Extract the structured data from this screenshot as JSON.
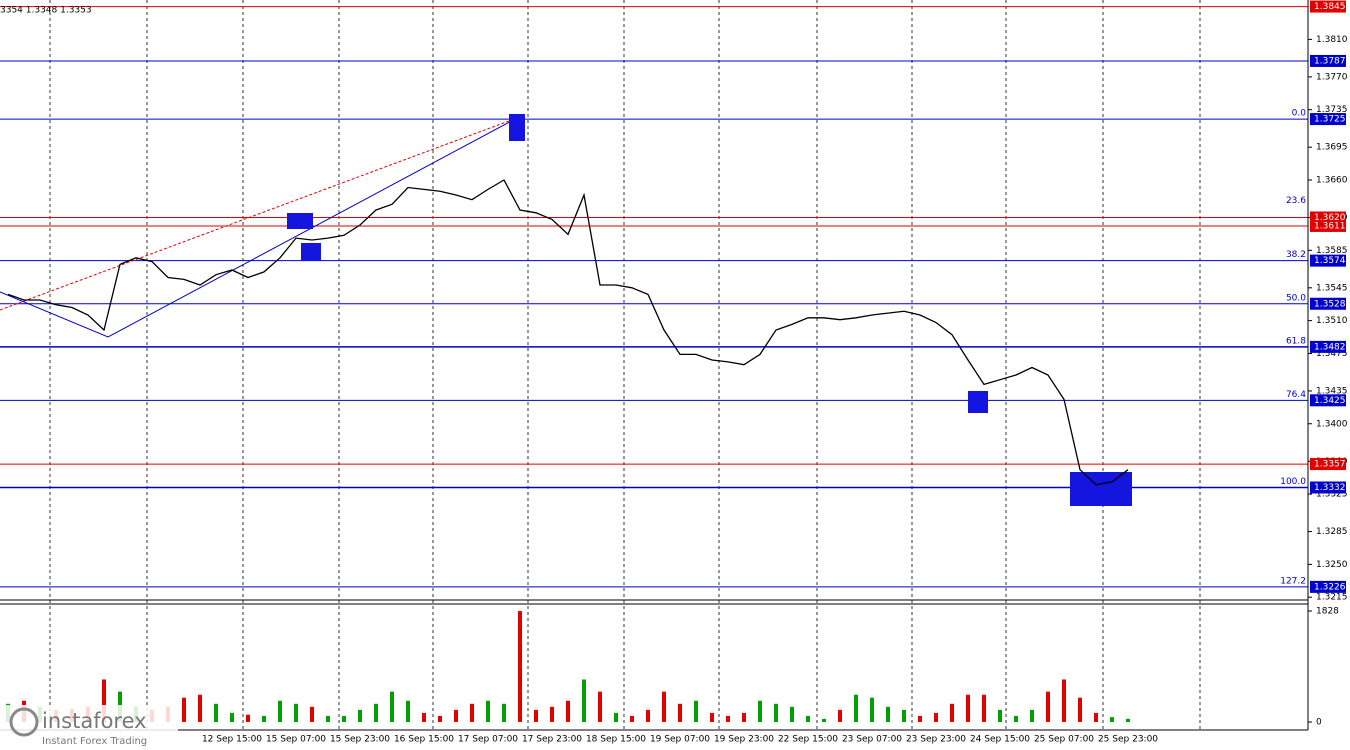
{
  "header": "3354 1.3348 1.3353",
  "logo": {
    "brand": "instaforex",
    "tagline": "Instant Forex Trading"
  },
  "chart_data": [
    {
      "type": "line",
      "color": "#000000",
      "categories": [
        null,
        null,
        null,
        null,
        null,
        null,
        null,
        null,
        null,
        null,
        null,
        null,
        null,
        null,
        "12 Sep 15:00",
        null,
        null,
        null,
        "15 Sep 07:00",
        null,
        null,
        null,
        "15 Sep 23:00",
        null,
        null,
        null,
        "16 Sep 15:00",
        null,
        null,
        null,
        "17 Sep 07:00",
        null,
        null,
        null,
        "17 Sep 23:00",
        null,
        null,
        null,
        "18 Sep 15:00",
        null,
        null,
        null,
        "19 Sep 07:00",
        null,
        null,
        null,
        "19 Sep 23:00",
        null,
        null,
        null,
        "22 Sep 15:00",
        null,
        null,
        null,
        "23 Sep 07:00",
        null,
        null,
        null,
        "23 Sep 23:00",
        null,
        null,
        null,
        "24 Sep 15:00",
        null,
        null,
        null,
        "25 Sep 07:00",
        null,
        null,
        null,
        "25 Sep 23:00"
      ],
      "values": [
        1.3538,
        1.3532,
        1.3532,
        1.3527,
        1.3524,
        1.3516,
        1.35,
        1.357,
        1.3577,
        1.3573,
        1.3556,
        1.3554,
        1.3548,
        1.3559,
        1.3564,
        1.3556,
        1.3562,
        1.3577,
        1.3598,
        1.3596,
        1.3598,
        1.3601,
        1.3612,
        1.3628,
        1.3634,
        1.3652,
        1.365,
        1.3648,
        1.3644,
        1.3639,
        1.365,
        1.366,
        1.3628,
        1.3625,
        1.3618,
        1.3602,
        1.3644,
        1.3548,
        1.3548,
        1.3545,
        1.3538,
        1.35,
        1.3474,
        1.3474,
        1.3468,
        1.3466,
        1.3463,
        1.3474,
        1.35,
        1.3506,
        1.3513,
        1.3513,
        1.3511,
        1.3513,
        1.3516,
        1.3518,
        1.352,
        1.3516,
        1.3508,
        1.3495,
        1.3468,
        1.3442,
        1.3447,
        1.3452,
        1.346,
        1.3452,
        1.3426,
        1.3351,
        1.3335,
        1.3338,
        1.3351
      ],
      "ylim": [
        1.3212,
        1.3852
      ],
      "yticks": [
        {
          "value": 1.381,
          "label": "1.3810"
        },
        {
          "value": 1.377,
          "label": "1.3770"
        },
        {
          "value": 1.3735,
          "label": "1.3735"
        },
        {
          "value": 1.3695,
          "label": "1.3695"
        },
        {
          "value": 1.366,
          "label": "1.3660"
        },
        {
          "value": 1.362,
          "label": "1.3620"
        },
        {
          "value": 1.3585,
          "label": "1.3585"
        },
        {
          "value": 1.3545,
          "label": "1.3545"
        },
        {
          "value": 1.351,
          "label": "1.3510"
        },
        {
          "value": 1.3475,
          "label": "1.3475"
        },
        {
          "value": 1.3435,
          "label": "1.3435"
        },
        {
          "value": 1.34,
          "label": "1.3400"
        },
        {
          "value": 1.336,
          "label": "1.3360"
        },
        {
          "value": 1.3325,
          "label": "1.3325"
        },
        {
          "value": 1.3285,
          "label": "1.3285"
        },
        {
          "value": 1.325,
          "label": "1.3250"
        },
        {
          "value": 1.3215,
          "label": "1.3215"
        }
      ],
      "levels": [
        {
          "value": 1.3845,
          "label": "1.3845",
          "color": "#e00000"
        },
        {
          "value": 1.3787,
          "label": "1.3787",
          "color": "#0000cc"
        },
        {
          "value": 1.3725,
          "label": "1.3725",
          "color": "#0000cc"
        },
        {
          "value": 1.362,
          "label": "1.3620",
          "color": "#e00000"
        },
        {
          "value": 1.3611,
          "label": "1.3611",
          "color": "#e00000"
        },
        {
          "value": 1.3574,
          "label": "1.3574",
          "color": "#0000cc"
        },
        {
          "value": 1.3528,
          "label": "1.3528",
          "color": "#0000cc"
        },
        {
          "value": 1.3482,
          "label": "1.3482",
          "color": "#0000cc"
        },
        {
          "value": 1.3425,
          "label": "1.3425",
          "color": "#0000cc"
        },
        {
          "value": 1.3357,
          "label": "1.3357",
          "color": "#e00000"
        },
        {
          "value": 1.3332,
          "label": "1.3332",
          "color": "#0000cc"
        },
        {
          "value": 1.3226,
          "label": "1.3226",
          "color": "#0000cc"
        }
      ],
      "fib_levels": [
        {
          "price": 1.3725,
          "label": "0.0"
        },
        {
          "price": 1.3632,
          "label": "23.6"
        },
        {
          "price": 1.3574,
          "label": "38.2"
        },
        {
          "price": 1.3528,
          "label": "50.0"
        },
        {
          "price": 1.3482,
          "label": "61.8"
        },
        {
          "price": 1.3425,
          "label": "76.4"
        },
        {
          "price": 1.3332,
          "label": "100.0"
        },
        {
          "price": 1.3226,
          "label": "127.2"
        }
      ]
    },
    {
      "type": "bar",
      "up_color": "#00a000",
      "down_color": "#e00000",
      "values": [
        300,
        350,
        250,
        200,
        220,
        250,
        700,
        500,
        250,
        200,
        250,
        400,
        450,
        300,
        150,
        120,
        100,
        350,
        300,
        250,
        100,
        100,
        200,
        300,
        500,
        350,
        150,
        100,
        200,
        300,
        350,
        300,
        1828,
        200,
        250,
        350,
        700,
        500,
        150,
        100,
        200,
        500,
        300,
        350,
        150,
        100,
        150,
        350,
        300,
        250,
        100,
        50,
        200,
        450,
        400,
        250,
        200,
        100,
        150,
        300,
        450,
        450,
        200,
        100,
        200,
        500,
        700,
        400,
        150,
        80,
        50
      ],
      "ylim": [
        0,
        1828
      ],
      "yticks": [
        0,
        1828
      ]
    }
  ]
}
